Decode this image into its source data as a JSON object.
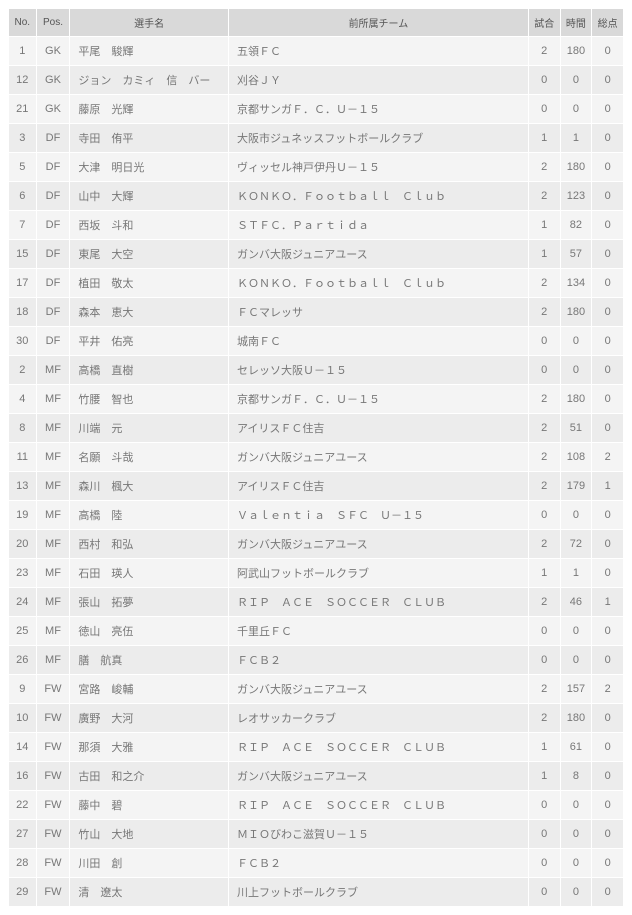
{
  "table": {
    "columns": [
      "No.",
      "Pos.",
      "選手名",
      "前所属チーム",
      "試合",
      "時間",
      "総点"
    ],
    "rows": [
      {
        "no": "1",
        "pos": "GK",
        "name": "平尾　駿輝",
        "team": "五領ＦＣ",
        "g": "2",
        "min": "180",
        "pts": "0"
      },
      {
        "no": "12",
        "pos": "GK",
        "name": "ジョン　カミィ　信　バー",
        "team": "刈谷ＪＹ",
        "g": "0",
        "min": "0",
        "pts": "0"
      },
      {
        "no": "21",
        "pos": "GK",
        "name": "藤原　光輝",
        "team": "京都サンガＦ．Ｃ．Ｕ－１５",
        "g": "0",
        "min": "0",
        "pts": "0"
      },
      {
        "no": "3",
        "pos": "DF",
        "name": "寺田　侑平",
        "team": "大阪市ジュネッスフットボールクラブ",
        "g": "1",
        "min": "1",
        "pts": "0"
      },
      {
        "no": "5",
        "pos": "DF",
        "name": "大津　明日光",
        "team": "ヴィッセル神戸伊丹Ｕ－１５",
        "g": "2",
        "min": "180",
        "pts": "0"
      },
      {
        "no": "6",
        "pos": "DF",
        "name": "山中　大輝",
        "team": "ＫＯＮＫＯ．Ｆｏｏｔｂａｌｌ　Ｃｌｕｂ",
        "g": "2",
        "min": "123",
        "pts": "0"
      },
      {
        "no": "7",
        "pos": "DF",
        "name": "西坂　斗和",
        "team": "ＳＴＦＣ．Ｐａｒｔｉｄａ",
        "g": "1",
        "min": "82",
        "pts": "0"
      },
      {
        "no": "15",
        "pos": "DF",
        "name": "東尾　大空",
        "team": "ガンバ大阪ジュニアユース",
        "g": "1",
        "min": "57",
        "pts": "0"
      },
      {
        "no": "17",
        "pos": "DF",
        "name": "植田　敬太",
        "team": "ＫＯＮＫＯ．Ｆｏｏｔｂａｌｌ　Ｃｌｕｂ",
        "g": "2",
        "min": "134",
        "pts": "0"
      },
      {
        "no": "18",
        "pos": "DF",
        "name": "森本　恵大",
        "team": "ＦＣマレッサ",
        "g": "2",
        "min": "180",
        "pts": "0"
      },
      {
        "no": "30",
        "pos": "DF",
        "name": "平井　佑亮",
        "team": "城南ＦＣ",
        "g": "0",
        "min": "0",
        "pts": "0"
      },
      {
        "no": "2",
        "pos": "MF",
        "name": "高橋　直樹",
        "team": "セレッソ大阪Ｕ－１５",
        "g": "0",
        "min": "0",
        "pts": "0"
      },
      {
        "no": "4",
        "pos": "MF",
        "name": "竹腰　智也",
        "team": "京都サンガＦ．Ｃ．Ｕ－１５",
        "g": "2",
        "min": "180",
        "pts": "0"
      },
      {
        "no": "8",
        "pos": "MF",
        "name": "川端　元",
        "team": "アイリスＦＣ住吉",
        "g": "2",
        "min": "51",
        "pts": "0"
      },
      {
        "no": "11",
        "pos": "MF",
        "name": "名願　斗哉",
        "team": "ガンバ大阪ジュニアユース",
        "g": "2",
        "min": "108",
        "pts": "2"
      },
      {
        "no": "13",
        "pos": "MF",
        "name": "森川　楓大",
        "team": "アイリスＦＣ住吉",
        "g": "2",
        "min": "179",
        "pts": "1"
      },
      {
        "no": "19",
        "pos": "MF",
        "name": "高橋　陸",
        "team": "Ｖａｌｅｎｔｉａ　ＳＦＣ　Ｕ－１５",
        "g": "0",
        "min": "0",
        "pts": "0"
      },
      {
        "no": "20",
        "pos": "MF",
        "name": "西村　和弘",
        "team": "ガンバ大阪ジュニアユース",
        "g": "2",
        "min": "72",
        "pts": "0"
      },
      {
        "no": "23",
        "pos": "MF",
        "name": "石田　瑛人",
        "team": "阿武山フットボールクラブ",
        "g": "1",
        "min": "1",
        "pts": "0"
      },
      {
        "no": "24",
        "pos": "MF",
        "name": "張山　拓夢",
        "team": "ＲＩＰ　ＡＣＥ　ＳＯＣＣＥＲ　ＣＬＵＢ",
        "g": "2",
        "min": "46",
        "pts": "1"
      },
      {
        "no": "25",
        "pos": "MF",
        "name": "徳山　亮伍",
        "team": "千里丘ＦＣ",
        "g": "0",
        "min": "0",
        "pts": "0"
      },
      {
        "no": "26",
        "pos": "MF",
        "name": "膳　航真",
        "team": "ＦＣＢ２",
        "g": "0",
        "min": "0",
        "pts": "0"
      },
      {
        "no": "9",
        "pos": "FW",
        "name": "宮路　峻輔",
        "team": "ガンバ大阪ジュニアユース",
        "g": "2",
        "min": "157",
        "pts": "2"
      },
      {
        "no": "10",
        "pos": "FW",
        "name": "廣野　大河",
        "team": "レオサッカークラブ",
        "g": "2",
        "min": "180",
        "pts": "0"
      },
      {
        "no": "14",
        "pos": "FW",
        "name": "那須　大雅",
        "team": "ＲＩＰ　ＡＣＥ　ＳＯＣＣＥＲ　ＣＬＵＢ",
        "g": "1",
        "min": "61",
        "pts": "0"
      },
      {
        "no": "16",
        "pos": "FW",
        "name": "古田　和之介",
        "team": "ガンバ大阪ジュニアユース",
        "g": "1",
        "min": "8",
        "pts": "0"
      },
      {
        "no": "22",
        "pos": "FW",
        "name": "藤中　碧",
        "team": "ＲＩＰ　ＡＣＥ　ＳＯＣＣＥＲ　ＣＬＵＢ",
        "g": "0",
        "min": "0",
        "pts": "0"
      },
      {
        "no": "27",
        "pos": "FW",
        "name": "竹山　大地",
        "team": "ＭＩＯびわこ滋賀Ｕ－１５",
        "g": "0",
        "min": "0",
        "pts": "0"
      },
      {
        "no": "28",
        "pos": "FW",
        "name": "川田　創",
        "team": "ＦＣＢ２",
        "g": "0",
        "min": "0",
        "pts": "0"
      },
      {
        "no": "29",
        "pos": "FW",
        "name": "清　遼太",
        "team": "川上フットボールクラブ",
        "g": "0",
        "min": "0",
        "pts": "0"
      }
    ]
  }
}
